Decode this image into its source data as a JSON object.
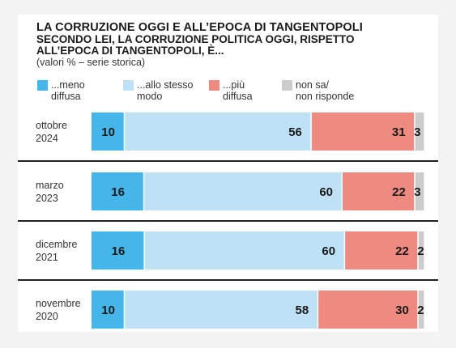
{
  "title": "LA CORRUZIONE OGGI E ALL’EPOCA DI TANGENTOPOLI",
  "subtitle": "SECONDO LEI, LA CORRUZIONE POLITICA OGGI, RISPETTO ALL’EPOCA DI TANGENTOPOLI, È...",
  "note": "(valori % – serie storica)",
  "chart_data": {
    "type": "bar",
    "orientation": "horizontal",
    "stacked": true,
    "categories": [
      [
        "ottobre",
        "2024"
      ],
      [
        "marzo",
        "2023"
      ],
      [
        "dicembre",
        "2021"
      ],
      [
        "novembre",
        "2020"
      ]
    ],
    "series": [
      {
        "name": [
          "...meno",
          "diffusa"
        ],
        "color": "#45b6ea",
        "values": [
          10,
          16,
          16,
          10
        ]
      },
      {
        "name": [
          "...allo stesso",
          "modo"
        ],
        "color": "#bfe1f5",
        "values": [
          56,
          60,
          60,
          58
        ]
      },
      {
        "name": [
          "...più",
          "diffusa"
        ],
        "color": "#ee8a7f",
        "values": [
          31,
          22,
          22,
          30
        ]
      },
      {
        "name": [
          "non sa/",
          "non risponde"
        ],
        "color": "#cccccc",
        "values": [
          3,
          3,
          2,
          2
        ]
      }
    ],
    "xlim": [
      0,
      100
    ],
    "legend": "top"
  }
}
